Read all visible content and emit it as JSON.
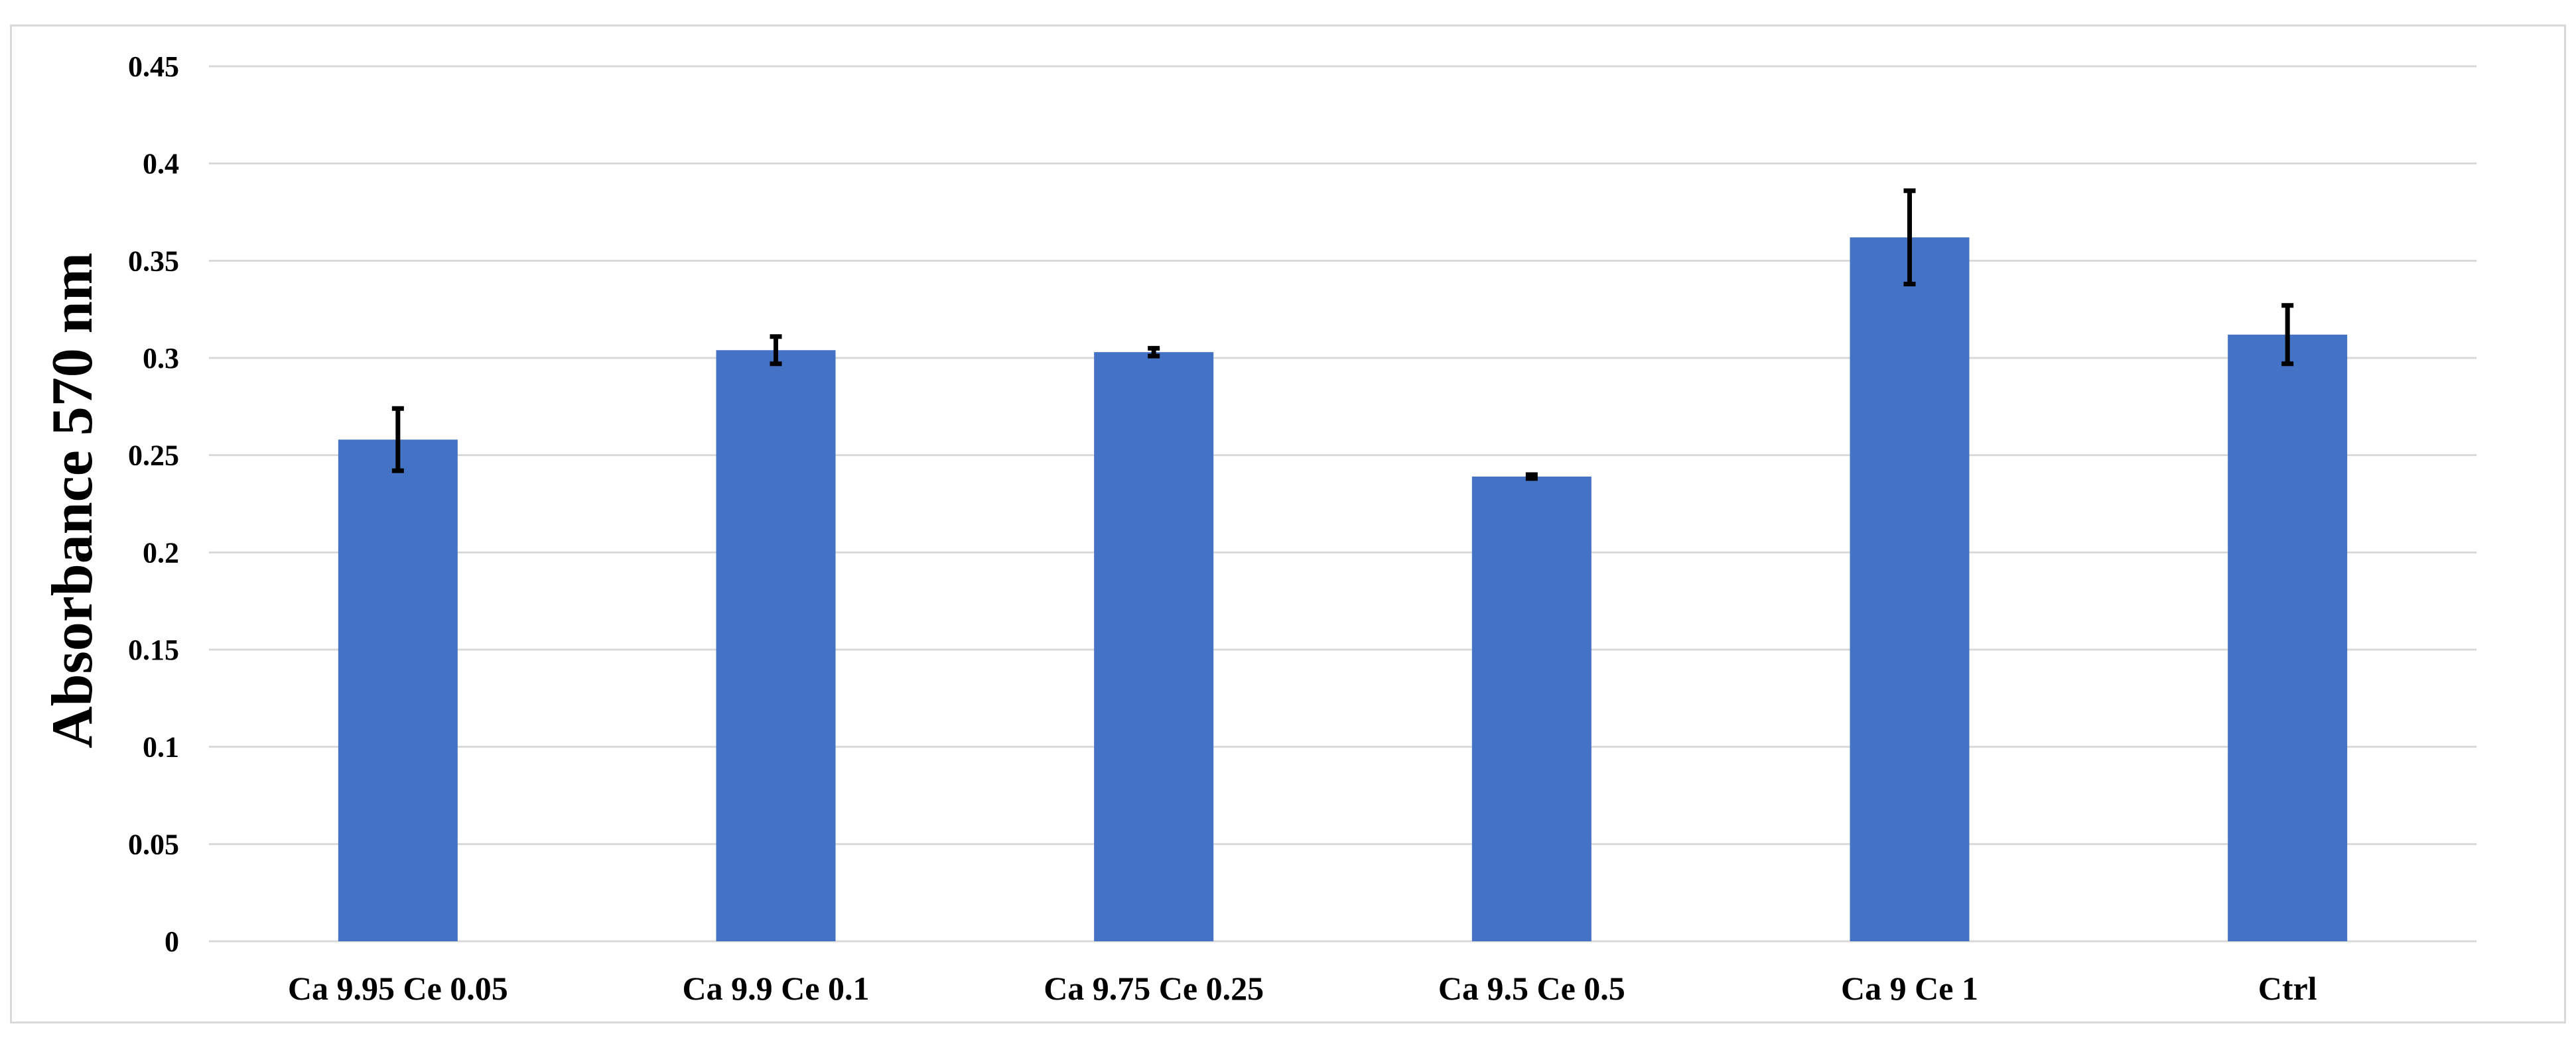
{
  "chart_data": {
    "type": "bar",
    "title": "",
    "xlabel": "",
    "ylabel": "Absorbance 570 nm",
    "categories": [
      "Ca 9.95 Ce 0.05",
      "Ca 9.9 Ce 0.1",
      "Ca 9.75 Ce 0.25",
      "Ca 9.5 Ce 0.5",
      "Ca 9 Ce 1",
      "Ctrl"
    ],
    "values": [
      0.258,
      0.304,
      0.303,
      0.239,
      0.362,
      0.312
    ],
    "errors": [
      0.016,
      0.007,
      0.002,
      0.001,
      0.024,
      0.015
    ],
    "ylim": [
      0,
      0.45
    ],
    "yticks": [
      0,
      0.05,
      0.1,
      0.15,
      0.2,
      0.25,
      0.3,
      0.35,
      0.4,
      0.45
    ],
    "ytick_labels": [
      "0",
      "0.05",
      "0.1",
      "0.15",
      "0.2",
      "0.25",
      "0.3",
      "0.35",
      "0.4",
      "0.45"
    ],
    "grid": true,
    "legend": "none",
    "bar_color": "#4472c4",
    "error_bar_color": "#000000",
    "grid_color": "#d9d9d9"
  }
}
